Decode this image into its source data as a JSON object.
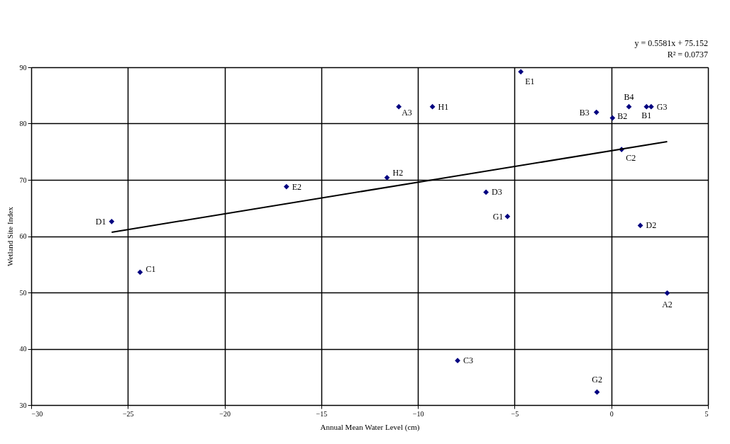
{
  "chart_data": {
    "type": "scatter",
    "xlabel": "Annual Mean Water Level (cm)",
    "ylabel": "Wetland Site Index",
    "xlim": [
      -30,
      5
    ],
    "xticks": [
      -30,
      -25,
      -20,
      -15,
      -10,
      -5,
      0,
      5
    ],
    "ylim": [
      30,
      90
    ],
    "yticks": [
      30,
      40,
      50,
      60,
      70,
      80,
      90
    ],
    "grid": true,
    "legend": false,
    "marker": "diamond",
    "annotations": [
      "y = 0.5581x + 75.152",
      "R² = 0.0737"
    ],
    "series": [
      {
        "type": "scatter",
        "color": "#000080",
        "x": [
          -25.84,
          -24.37,
          -16.8,
          -11.6,
          -10.99,
          -9.25,
          -7.95,
          -6.48,
          -5.37,
          -4.68,
          -0.77,
          -0.74,
          0.06,
          0.53,
          0.91,
          1.5,
          1.82,
          2.06,
          2.89
        ],
        "values": [
          62.6,
          53.6,
          68.8,
          70.4,
          83.0,
          83.0,
          37.9,
          67.8,
          63.5,
          89.2,
          82.0,
          32.3,
          81.0,
          75.4,
          83.0,
          61.9,
          83.0,
          83.0,
          49.9
        ],
        "value_labels": [
          "D1",
          "C1",
          "E2",
          "H2",
          "A3",
          "H1",
          "C3",
          "D3",
          "G1",
          "E1",
          "B3",
          "G2",
          "B2",
          "C2",
          "B4",
          "D2",
          "B1",
          "G3",
          "A2"
        ]
      },
      {
        "type": "line",
        "color": "#000000",
        "marker": "none",
        "line_style": "solid",
        "x": [
          -25.84,
          2.89
        ],
        "values": [
          60.7,
          76.8
        ]
      }
    ]
  }
}
